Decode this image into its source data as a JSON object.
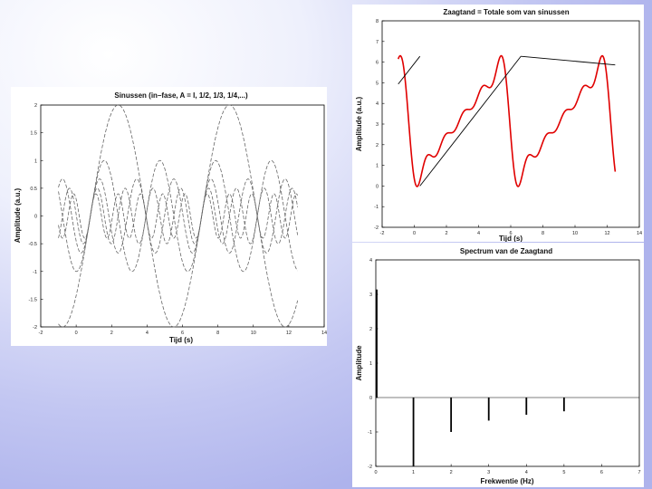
{
  "chart_data": [
    {
      "type": "line",
      "title": "Sinussen (in–fase, A = I, 1/2, 1/3, 1/4,...)",
      "xlabel": "Tijd (s)",
      "ylabel": "Amplitude (a.u.)",
      "xlim": [
        -2,
        14
      ],
      "ylim": [
        -2,
        2
      ],
      "x_range": [
        -1,
        12.5
      ],
      "xticks": [
        "-2",
        "0",
        "2",
        "4",
        "6",
        "8",
        "10",
        "12",
        "14"
      ],
      "yticks": [
        "2",
        "1.5",
        "1",
        "0.5",
        "0",
        "-0.5",
        "-1",
        "-1.5",
        "-2"
      ],
      "grid": false,
      "series": [
        {
          "amplitude": 2,
          "frequency": 1
        },
        {
          "amplitude": 1,
          "frequency": 2
        },
        {
          "amplitude": 0.667,
          "frequency": 3
        },
        {
          "amplitude": 0.5,
          "frequency": 4
        },
        {
          "amplitude": 0.4,
          "frequency": 5
        }
      ],
      "period": 6.283,
      "colors": {
        "series": "#666666"
      }
    },
    {
      "type": "line",
      "title": "Zaagtand = Totale som van sinussen",
      "xlabel": "Tijd (s)",
      "ylabel": "Amplitude (a.u.)",
      "xlim": [
        -2,
        14
      ],
      "ylim": [
        -2,
        8
      ],
      "x_range": [
        -1,
        12.5
      ],
      "xticks": [
        "-2",
        "0",
        "2",
        "4",
        "6",
        "8",
        "10",
        "12",
        "14"
      ],
      "yticks": [
        "8",
        "7",
        "6",
        "5",
        "4",
        "3",
        "2",
        "1",
        "0",
        "-1",
        "-2"
      ],
      "grid": false,
      "series": [
        {
          "kind": "fourier-sum",
          "harmonics": 5,
          "offset": 3.1416,
          "color": "#e00000"
        },
        {
          "kind": "ideal-sawtooth",
          "offset": 3.1416,
          "color": "#000000"
        }
      ],
      "period": 6.283
    },
    {
      "type": "bar",
      "title": "Spectrum van de Zaagtand",
      "xlabel": "Frekwentie (Hz)",
      "ylabel": "Amplitude",
      "xlim": [
        0,
        7
      ],
      "ylim": [
        -2,
        4
      ],
      "xticks": [
        "0",
        "1",
        "2",
        "3",
        "4",
        "5",
        "6",
        "7"
      ],
      "yticks": [
        "4",
        "3",
        "2",
        "1",
        "0",
        "-1",
        "-2"
      ],
      "grid": false,
      "x": [
        0,
        1,
        2,
        3,
        4,
        5
      ],
      "values": [
        3.14,
        -2,
        -1,
        -0.67,
        -0.5,
        -0.4
      ],
      "colors": {
        "bars": "#000000"
      }
    }
  ]
}
